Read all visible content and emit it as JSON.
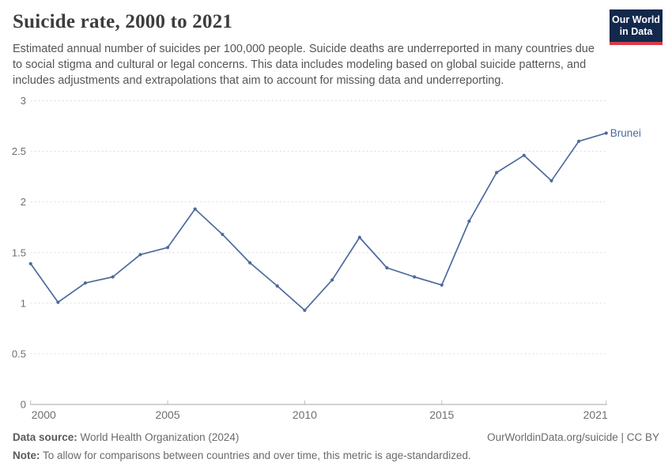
{
  "header": {
    "title": "Suicide rate, 2000 to 2021",
    "subtitle": "Estimated annual number of suicides per 100,000 people. Suicide deaths are underreported in many countries due to social stigma and cultural or legal concerns. This data includes modeling based on global suicide patterns, and includes adjustments and extrapolations that aim to account for missing data and underreporting."
  },
  "logo": {
    "line1": "Our World",
    "line2": "in Data",
    "bg_color": "#12294d",
    "accent_color": "#d73a49"
  },
  "chart_data": {
    "type": "line",
    "title": "Suicide rate, 2000 to 2021",
    "xlabel": "",
    "ylabel": "",
    "xlim": [
      2000,
      2021
    ],
    "ylim": [
      0,
      3
    ],
    "x_ticks": [
      2000,
      2005,
      2010,
      2015,
      2021
    ],
    "y_ticks": [
      0,
      0.5,
      1,
      1.5,
      2,
      2.5,
      3
    ],
    "grid": "horizontal-dashed",
    "legend_position": "end-of-line",
    "series": [
      {
        "name": "Brunei",
        "color": "#4c6a9c",
        "x": [
          2000,
          2001,
          2002,
          2003,
          2004,
          2005,
          2006,
          2007,
          2008,
          2009,
          2010,
          2011,
          2012,
          2013,
          2014,
          2015,
          2016,
          2017,
          2018,
          2019,
          2020,
          2021
        ],
        "values": [
          1.39,
          1.01,
          1.2,
          1.26,
          1.48,
          1.55,
          1.93,
          1.68,
          1.4,
          1.17,
          0.93,
          1.23,
          1.65,
          1.35,
          1.26,
          1.18,
          1.81,
          2.29,
          2.46,
          2.21,
          2.6,
          2.68
        ]
      }
    ]
  },
  "chart_style": {
    "grid_color": "#dcdcdc",
    "axis_color": "#a5a5a5",
    "tick_color": "#bdbdbd",
    "tick_label_color": "#6f6f6f"
  },
  "footer": {
    "source_label": "Data source:",
    "source_text": " World Health Organization (2024)",
    "credit": "OurWorldinData.org/suicide | CC BY",
    "note_label": "Note:",
    "note_text": " To allow for comparisons between countries and over time, this metric is age-standardized."
  }
}
